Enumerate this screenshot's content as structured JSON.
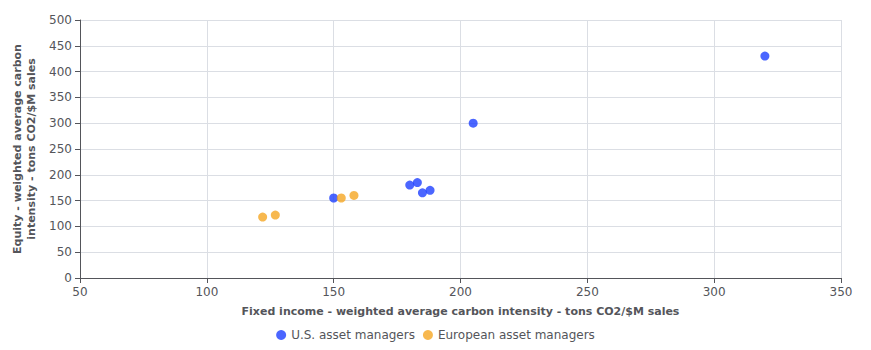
{
  "chart_data": {
    "type": "scatter",
    "xlabel": "Fixed income - weighted average carbon intensity - tons CO2/$M sales",
    "ylabel": "Equity - weighted average carbon\nintensity - tons CO2/$M sales",
    "series": [
      {
        "name": "U.S. asset managers",
        "color": "#1e40ff",
        "x": [
          205,
          320,
          150,
          180,
          183,
          188,
          185
        ],
        "values": [
          300,
          430,
          155,
          180,
          185,
          170,
          165
        ]
      },
      {
        "name": "European asset managers",
        "color": "#f5a623",
        "x": [
          122,
          127,
          153,
          158
        ],
        "values": [
          118,
          122,
          155,
          160
        ]
      }
    ],
    "xlim": [
      50,
      350
    ],
    "ylim": [
      0,
      500
    ],
    "xticks": [
      50,
      100,
      150,
      200,
      250,
      300,
      350
    ],
    "yticks": [
      0,
      50,
      100,
      150,
      200,
      250,
      300,
      350,
      400,
      450,
      500
    ],
    "grid": true,
    "legend": "bottom"
  }
}
